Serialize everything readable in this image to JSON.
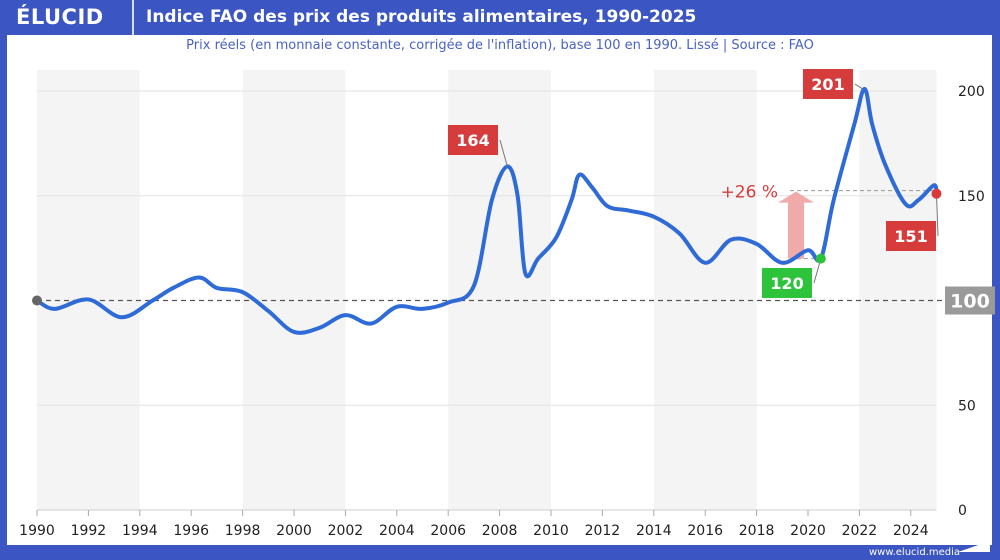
{
  "header": {
    "logo": "ÉLUCID",
    "title": "Indice FAO des prix des produits alimentaires, 1990-2025"
  },
  "subtitle": "Prix réels (en monnaie constante, corrigée de l'inflation), base 100 en 1990. Lissé  |  Source : FAO",
  "footer": "www.elucid.media",
  "colors": {
    "frame": "#3b56c2",
    "line": "#2f6bd6",
    "highlight": "#d63c3c",
    "low": "#2dc43c",
    "base": "#9a9a9a",
    "arrow": "#f0aaaa"
  },
  "chart_data": {
    "type": "line",
    "xlim": [
      1990,
      2025
    ],
    "ylim": [
      0,
      210
    ],
    "x_ticks": [
      1990,
      1992,
      1994,
      1996,
      1998,
      2000,
      2002,
      2004,
      2006,
      2008,
      2010,
      2012,
      2014,
      2016,
      2018,
      2020,
      2022,
      2024
    ],
    "y_ticks": [
      0,
      50,
      100,
      150,
      200
    ],
    "y_axis_side": "right",
    "baseline": 100,
    "baseline_label": "100",
    "grid": true,
    "series": [
      {
        "x": [
          1990,
          1990.7,
          1992,
          1993.3,
          1994.5,
          1995.3,
          1996.3,
          1997,
          1998,
          1999,
          2000,
          2001,
          2002,
          2003,
          2004,
          2005,
          2006,
          2007,
          2007.7,
          2008.3,
          2008.7,
          2009,
          2009.5,
          2010.2,
          2010.8,
          2011.1,
          2011.6,
          2012.2,
          2013,
          2014,
          2015,
          2016,
          2017,
          2018,
          2019,
          2020,
          2020.5,
          2021,
          2021.8,
          2022.2,
          2022.5,
          2023,
          2023.8,
          2024.3,
          2024.9,
          2025
        ],
        "y": [
          100,
          96,
          100.5,
          92,
          100,
          106,
          111,
          106,
          104,
          95,
          85,
          87,
          93,
          89,
          97,
          96,
          99,
          107,
          148,
          164,
          150,
          113,
          120,
          130,
          148,
          160,
          154,
          145,
          143,
          140,
          132,
          118,
          129,
          127,
          118,
          124,
          120,
          148,
          184,
          201,
          184,
          165,
          146,
          148,
          155,
          151
        ]
      }
    ],
    "annotations": [
      {
        "label": "164",
        "x": 2008.3,
        "y": 164,
        "color": "highlight"
      },
      {
        "label": "201",
        "x": 2022.2,
        "y": 201,
        "color": "highlight"
      },
      {
        "label": "120",
        "x": 2020.5,
        "y": 120,
        "color": "low"
      },
      {
        "label": "151",
        "x": 2025,
        "y": 151,
        "color": "highlight"
      },
      {
        "label": "+26 %",
        "from": 120,
        "to": 151
      }
    ]
  }
}
